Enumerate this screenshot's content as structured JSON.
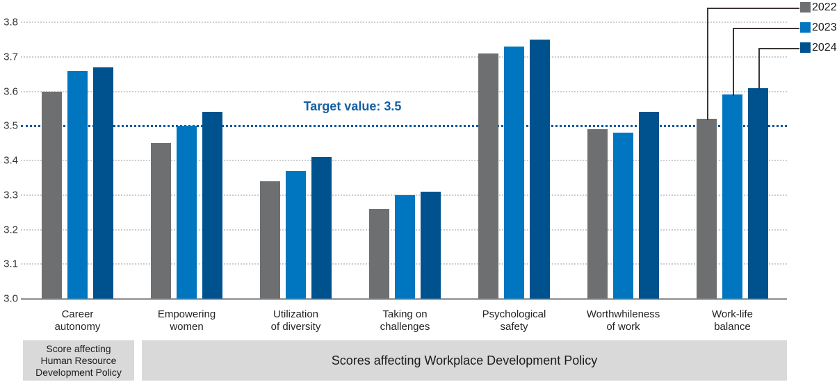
{
  "chart_data": {
    "type": "bar",
    "title": "",
    "categories": [
      "Career\nautonomy",
      "Empowering\nwomen",
      "Utilization\nof diversity",
      "Taking on\nchallenges",
      "Psychological\nsafety",
      "Worthwhileness\nof work",
      "Work-life\nbalance"
    ],
    "series": [
      {
        "name": "2022",
        "color": "#6e6f71",
        "values": [
          3.6,
          3.45,
          3.34,
          3.26,
          3.71,
          3.49,
          3.52
        ]
      },
      {
        "name": "2023",
        "color": "#0076c0",
        "values": [
          3.66,
          3.5,
          3.37,
          3.3,
          3.73,
          3.48,
          3.59
        ]
      },
      {
        "name": "2024",
        "color": "#00528e",
        "values": [
          3.67,
          3.54,
          3.41,
          3.31,
          3.75,
          3.54,
          3.61
        ]
      }
    ],
    "ylim": [
      3.0,
      3.8
    ],
    "ytick_labels": [
      "3.0",
      "3.1",
      "3.2",
      "3.3",
      "3.4",
      "3.5",
      "3.6",
      "3.7",
      "3.8"
    ],
    "target_line": {
      "value": 3.5,
      "label": "Target value: 3.5",
      "color": "#0e589c"
    },
    "grid": "dotted-horizontal",
    "legend_position": "top-right",
    "legend_connectors_to": "Work-life balance bars"
  },
  "footer": {
    "left_box_lines": [
      "Score affecting",
      "Human Resource",
      "Development Policy"
    ],
    "right_box_label": "Scores affecting Workplace Development Policy"
  }
}
